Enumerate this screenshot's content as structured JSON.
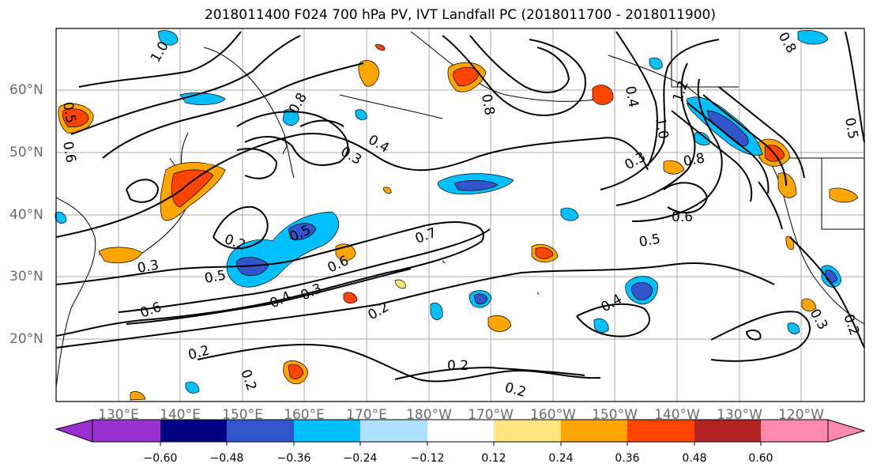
{
  "title": "2018011400 F024 700 hPa PV, IVT Landfall PC (2018011700 - 2018011900)",
  "lat_labels": [
    "60°N",
    "50°N",
    "40°N",
    "30°N",
    "20°N"
  ],
  "lon_labels": [
    "130°E",
    "140°E",
    "150°E",
    "160°E",
    "170°E",
    "180°W",
    "170°W",
    "160°W",
    "150°W",
    "140°W",
    "130°W",
    "120°W"
  ],
  "contour_labels": [
    "1.0",
    "0.5",
    "0.6",
    "0.8",
    "0.3",
    "0.4",
    "0.2",
    "0.5",
    "0.7",
    "0.6",
    "0.5",
    "0.4",
    "0.3",
    "0.2",
    "0.6",
    "0.2",
    "0.2",
    "0.2",
    "0.3",
    "0.4",
    "0.2",
    "0.8",
    "0.3",
    "1.0",
    "0.8",
    "0.6",
    "0.5",
    "0.4",
    "0.8",
    "1.2",
    "0.5",
    "0.3",
    "0.2"
  ],
  "colorbar": {
    "ticks": [
      "−0.60",
      "−0.48",
      "−0.36",
      "−0.24",
      "−0.12",
      "0.12",
      "0.24",
      "0.36",
      "0.48",
      "0.60"
    ],
    "colors": [
      "#9b30d0",
      "#000080",
      "#3355cc",
      "#00bfff",
      "#b0e0ff",
      "#ffffff",
      "#ffe680",
      "#ffa500",
      "#ff4500",
      "#b22222",
      "#ff88b0"
    ]
  }
}
